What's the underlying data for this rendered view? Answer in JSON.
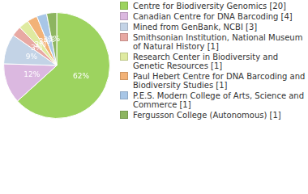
{
  "chart_data": {
    "type": "pie",
    "categories": [
      "Centre for Biodiversity Genomics [20]",
      "Canadian Centre for DNA Barcoding [4]",
      "Mined from GenBank, NCBI [3]",
      "Smithsonian Institution, National Museum of Natural History [1]",
      "Research Center in Biodiversity and Genetic Resources [1]",
      "Paul Hebert Centre for DNA Barcoding and Biodiversity Studies [1]",
      "P.E.S. Modern College of Arts, Science and Commerce [1]",
      "Fergusson College (Autonomous) [1]"
    ],
    "values": [
      62,
      12,
      9,
      3,
      3,
      3,
      3,
      3
    ],
    "value_labels": [
      "62%",
      "12%",
      "9%",
      "3%",
      "3%",
      "3%",
      "3%",
      "3%"
    ],
    "colors": [
      "#9dd35f",
      "#dbb8e0",
      "#c3d3e6",
      "#e8a9a3",
      "#dfeaa0",
      "#f2b277",
      "#a8c6e6",
      "#8db560"
    ],
    "data_labels": true,
    "legend": "right"
  }
}
